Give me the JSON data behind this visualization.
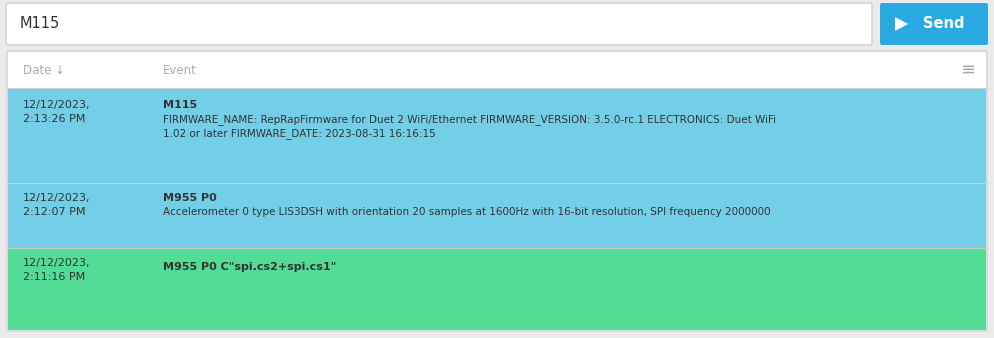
{
  "bg_color": "#ebebeb",
  "input_box_color": "#ffffff",
  "input_text": "M115",
  "input_text_color": "#333333",
  "send_btn_color": "#29abe2",
  "send_btn_text": "Send",
  "send_btn_text_color": "#ffffff",
  "table_bg": "#ffffff",
  "header_bg": "#ffffff",
  "header_date_text": "Date ↓",
  "header_event_text": "Event",
  "header_text_color": "#aaaaaa",
  "row1_bg": "#73cfe8",
  "row2_bg": "#73cfe8",
  "row3_bg": "#52dc96",
  "row1_date_line1": "12/12/2023,",
  "row1_date_line2": "2:13:26 PM",
  "row1_event_bold": "M115",
  "row1_event_line1": "FIRMWARE_NAME: RepRapFirmware for Duet 2 WiFi/Ethernet FIRMWARE_VERSION: 3.5.0-rc.1 ELECTRONICS: Duet WiFi",
  "row1_event_line2": "1.02 or later FIRMWARE_DATE: 2023-08-31 16:16:15",
  "row2_date_line1": "12/12/2023,",
  "row2_date_line2": "2:12:07 PM",
  "row2_event_bold": "M955 P0",
  "row2_event_normal": "Accelerometer 0 type LIS3DSH with orientation 20 samples at 1600Hz with 16-bit resolution, SPI frequency 2000000",
  "row3_date_line1": "12/12/2023,",
  "row3_date_line2": "2:11:16 PM",
  "row3_event_bold": "M955 P0 C\"spi.cs2+spi.cs1\"",
  "divider_color": "#cccccc",
  "text_color": "#333333",
  "font_size_small": 8.0,
  "font_size_header": 8.5,
  "font_size_input": 10.5,
  "font_size_send": 10.5
}
